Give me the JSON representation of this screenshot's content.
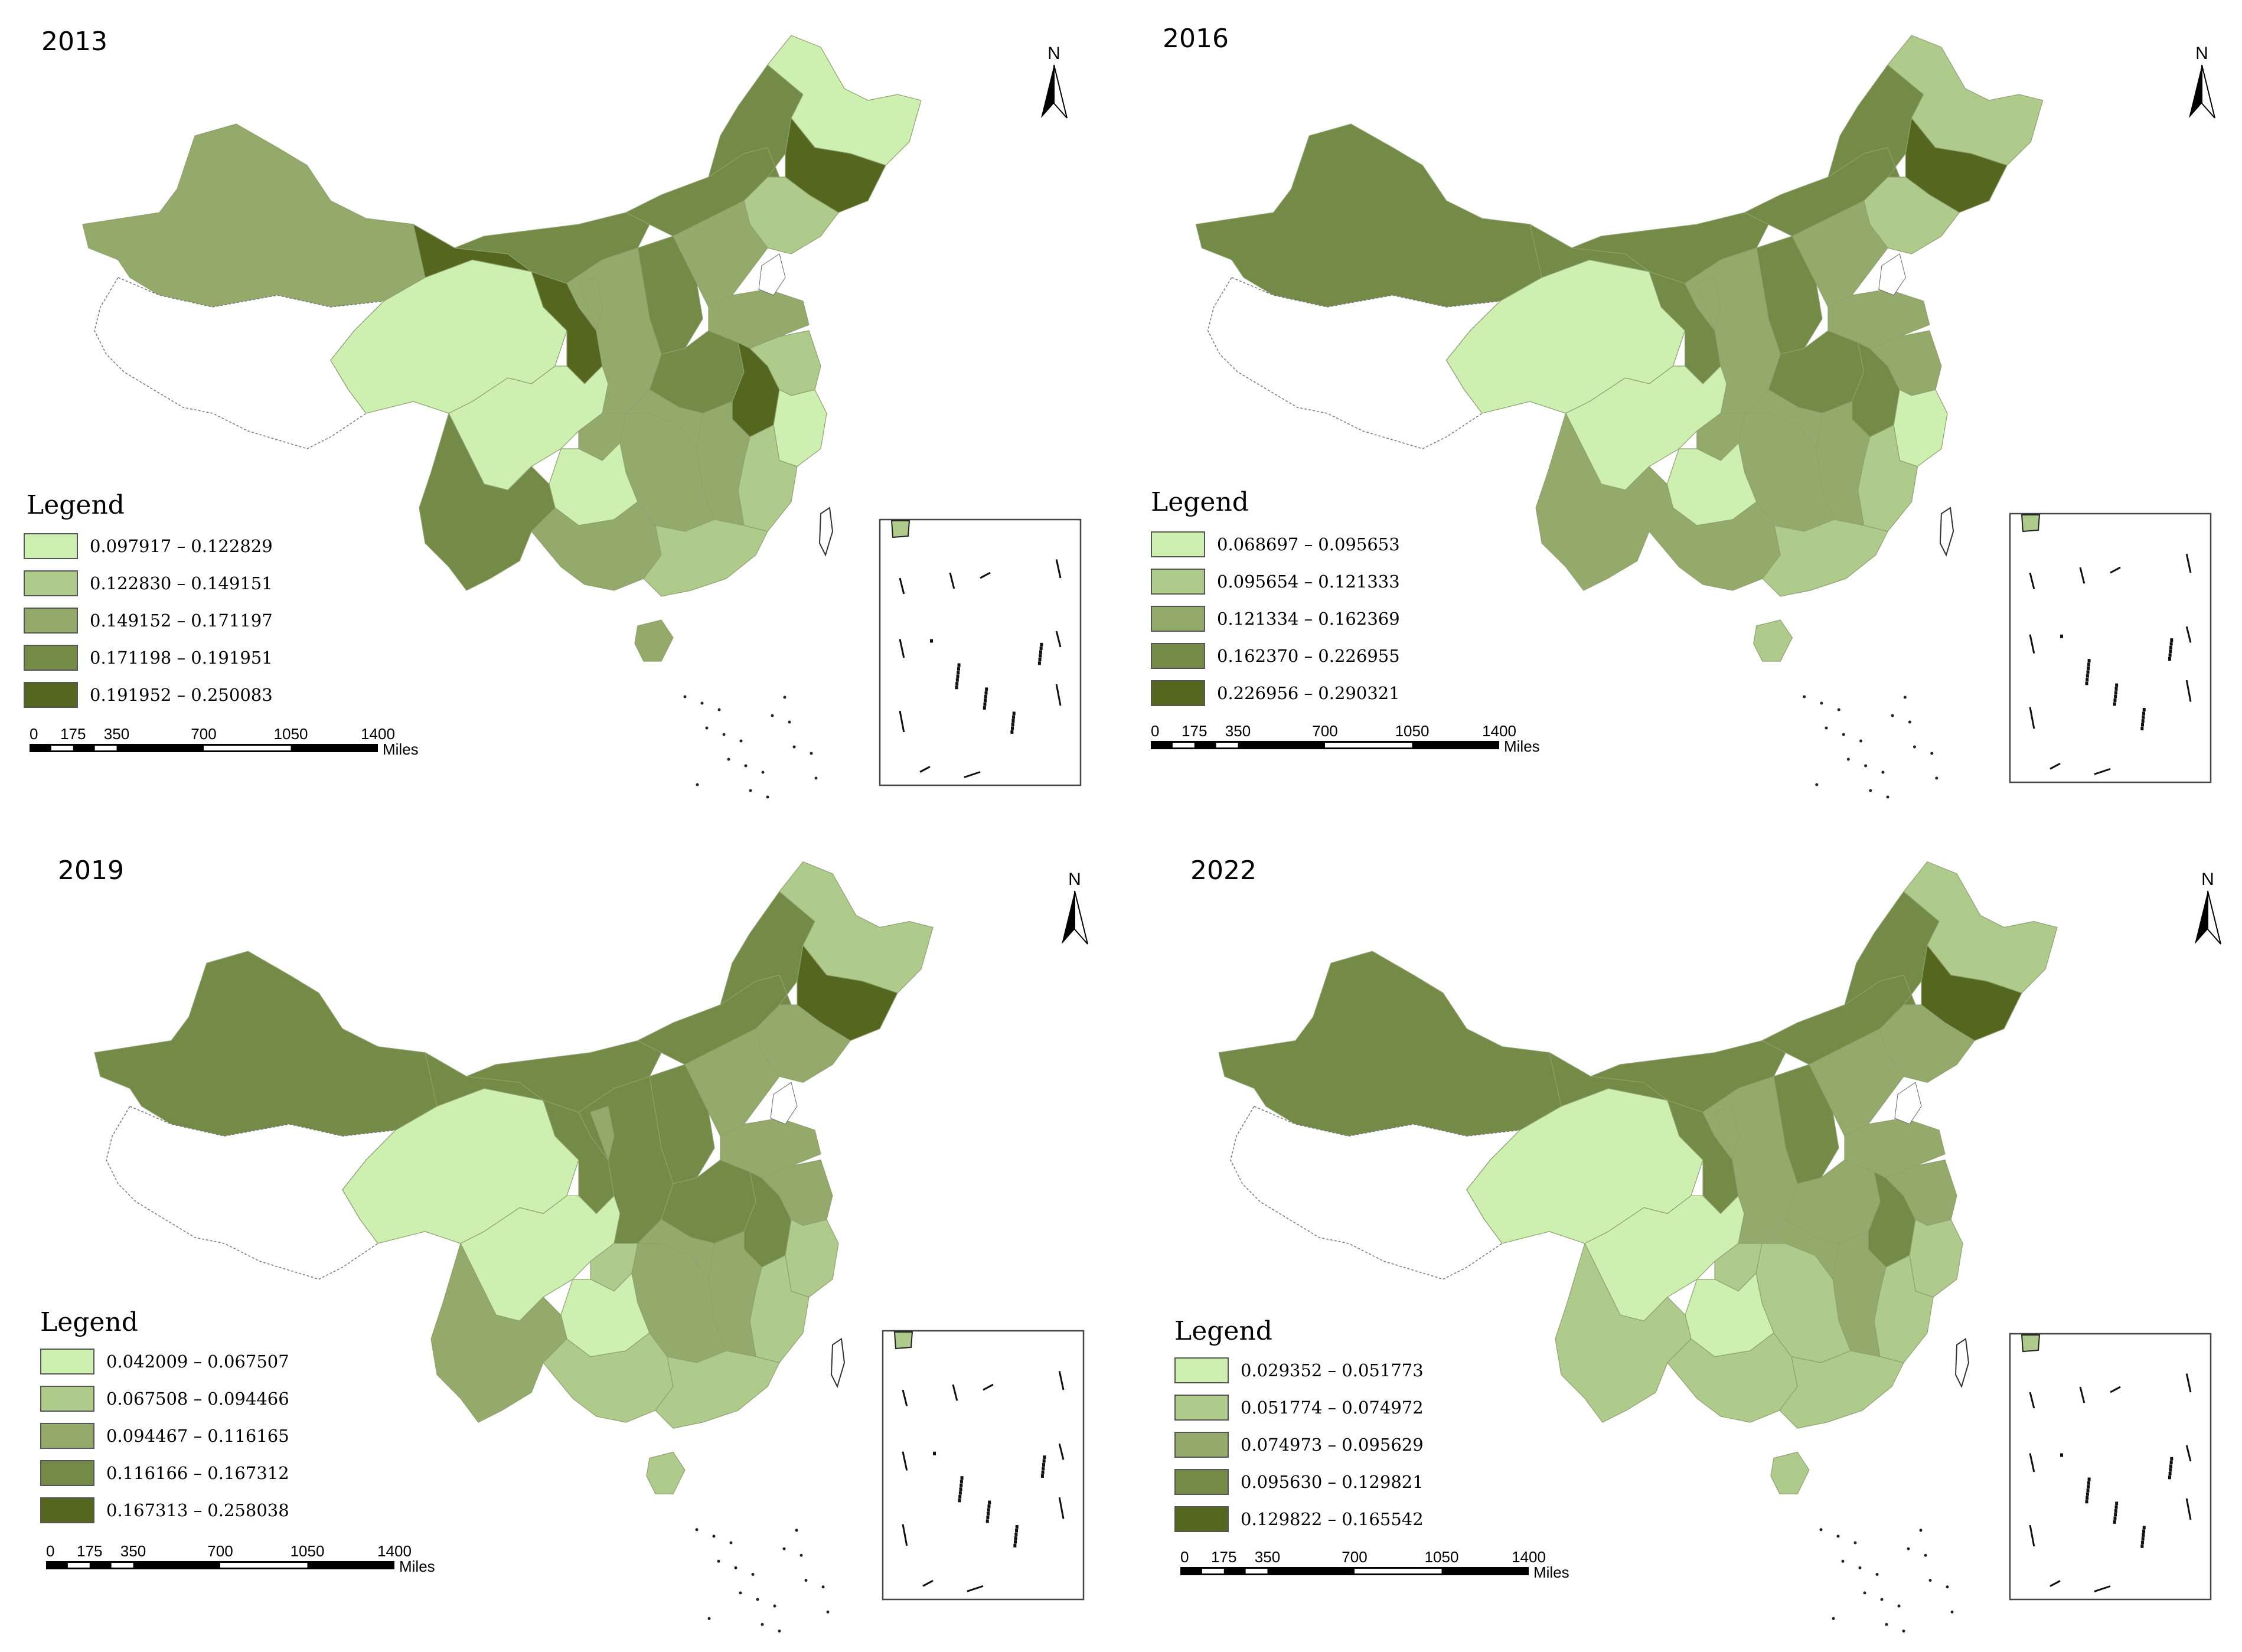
{
  "panels": [
    {
      "year": "2013",
      "legend_title": "Legend",
      "legend": [
        {
          "range": "0.097917 – 0.122829",
          "color": "#cdefb0"
        },
        {
          "range": "0.122830 – 0.149151",
          "color": "#afcb8c"
        },
        {
          "range": "0.149152 – 0.171197",
          "color": "#93aa6b"
        },
        {
          "range": "0.171198 – 0.191951",
          "color": "#738b46"
        },
        {
          "range": "0.191952 – 0.250083",
          "color": "#55661f"
        }
      ],
      "scale_ticks": [
        "0",
        "175",
        "350",
        "700",
        "1050",
        "1400"
      ],
      "scale_unit": "Miles",
      "north_label": "N"
    },
    {
      "year": "2016",
      "legend_title": "Legend",
      "legend": [
        {
          "range": "0.068697 – 0.095653",
          "color": "#cdefb0"
        },
        {
          "range": "0.095654 – 0.121333",
          "color": "#afcb8c"
        },
        {
          "range": "0.121334 – 0.162369",
          "color": "#93aa6b"
        },
        {
          "range": "0.162370 – 0.226955",
          "color": "#738b46"
        },
        {
          "range": "0.226956 – 0.290321",
          "color": "#55661f"
        }
      ],
      "scale_ticks": [
        "0",
        "175",
        "350",
        "700",
        "1050",
        "1400"
      ],
      "scale_unit": "Miles",
      "north_label": "N"
    },
    {
      "year": "2019",
      "legend_title": "Legend",
      "legend": [
        {
          "range": "0.042009 – 0.067507",
          "color": "#cdefb0"
        },
        {
          "range": "0.067508 – 0.094466",
          "color": "#afcb8c"
        },
        {
          "range": "0.094467 – 0.116165",
          "color": "#93aa6b"
        },
        {
          "range": "0.116166 – 0.167312",
          "color": "#738b46"
        },
        {
          "range": "0.167313 – 0.258038",
          "color": "#55661f"
        }
      ],
      "scale_ticks": [
        "0",
        "175",
        "350",
        "700",
        "1050",
        "1400"
      ],
      "scale_unit": "Miles",
      "north_label": "N"
    },
    {
      "year": "2022",
      "legend_title": "Legend",
      "legend": [
        {
          "range": "0.029352 – 0.051773",
          "color": "#cdefb0"
        },
        {
          "range": "0.051774 – 0.074972",
          "color": "#afcb8c"
        },
        {
          "range": "0.074973 – 0.095629",
          "color": "#93aa6b"
        },
        {
          "range": "0.095630 – 0.129821",
          "color": "#738b46"
        },
        {
          "range": "0.129822 – 0.165542",
          "color": "#55661f"
        }
      ],
      "scale_ticks": [
        "0",
        "175",
        "350",
        "700",
        "1050",
        "1400"
      ],
      "scale_unit": "Miles",
      "north_label": "N"
    }
  ]
}
